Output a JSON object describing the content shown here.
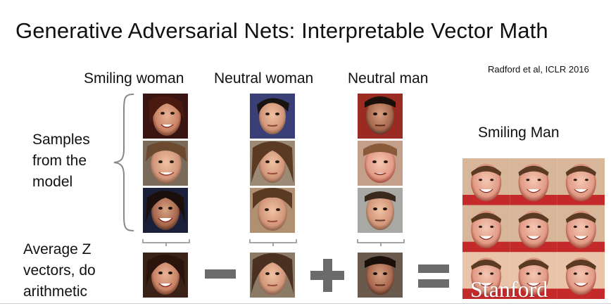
{
  "slide": {
    "title": "Generative Adversarial Nets: Interpretable Vector Math",
    "citation": "Radford et al, ICLR 2016",
    "columns": {
      "smiling_woman": "Smiling woman",
      "neutral_woman": "Neutral woman",
      "neutral_man": "Neutral man",
      "smiling_man": "Smiling Man"
    },
    "samples_label": [
      "Samples",
      "from the",
      "model"
    ],
    "average_label": [
      "Average Z",
      "vectors, do",
      "arithmetic"
    ],
    "operators": [
      "minus",
      "plus",
      "equals"
    ],
    "logo_text": "Stanford",
    "colors": {
      "operator": "#6b6b6b",
      "text": "#111111",
      "bracket": "#888888"
    }
  }
}
